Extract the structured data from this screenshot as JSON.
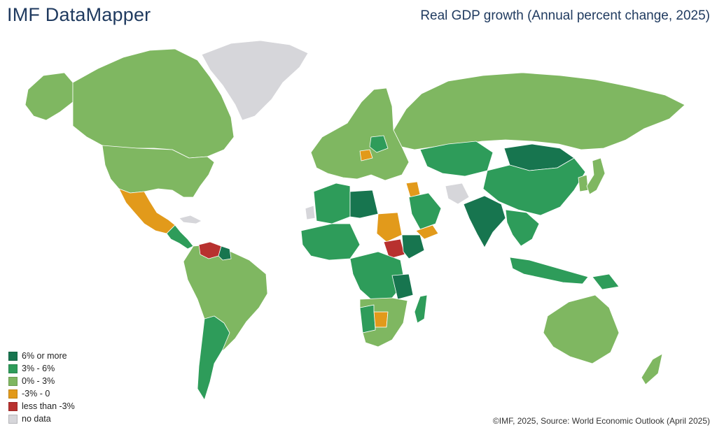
{
  "header": {
    "brand": "IMF DataMapper",
    "title": "Real GDP growth (Annual percent change, 2025)"
  },
  "legend": [
    {
      "label": "6% or more",
      "color": "#17754f"
    },
    {
      "label": "3% - 6%",
      "color": "#2e9c5a"
    },
    {
      "label": "0% - 3%",
      "color": "#7fb761"
    },
    {
      "label": "-3% - 0",
      "color": "#e29a1b"
    },
    {
      "label": "less than -3%",
      "color": "#b8312f"
    },
    {
      "label": "no data",
      "color": "#d6d6da"
    }
  ],
  "footer": {
    "source": "©IMF, 2025, Source: World Economic Outlook (April 2025)"
  },
  "regions": {
    "greenland": "no data",
    "canada": "0% - 3%",
    "alaska": "0% - 3%",
    "usa": "0% - 3%",
    "mexico": "-3% - 0",
    "central_america": "3% - 6%",
    "cuba": "no data",
    "venezuela": "less than -3%",
    "guyana": "6% or more",
    "south_america": "0% - 3%",
    "argentina": "3% - 6%",
    "western_europe": "0% - 3%",
    "poland": "3% - 6%",
    "hungary": "-3% - 0",
    "russia": "0% - 3%",
    "kazakhstan": "3% - 6%",
    "mongolia": "6% or more",
    "china": "3% - 6%",
    "iran": "no data",
    "syria": "-3% - 0",
    "north_africa": "3% - 6%",
    "libya": "6% or more",
    "sudan": "-3% - 0",
    "south_sudan": "less than -3%",
    "ethiopia": "6% or more",
    "saudi_arabia": "3% - 6%",
    "yemen": "-3% - 0",
    "west_africa": "3% - 6%",
    "central_africa": "3% - 6%",
    "tanzania": "6% or more",
    "southern_africa": "0% - 3%",
    "botswana": "-3% - 0",
    "namibia": "3% - 6%",
    "madagascar": "3% - 6%",
    "india": "6% or more",
    "southeast_asia": "3% - 6%",
    "japan": "0% - 3%",
    "korea": "0% - 3%",
    "indonesia": "3% - 6%",
    "papua_new_guinea": "3% - 6%",
    "australia": "0% - 3%",
    "new_zealand": "0% - 3%",
    "western_sahara": "no data"
  }
}
